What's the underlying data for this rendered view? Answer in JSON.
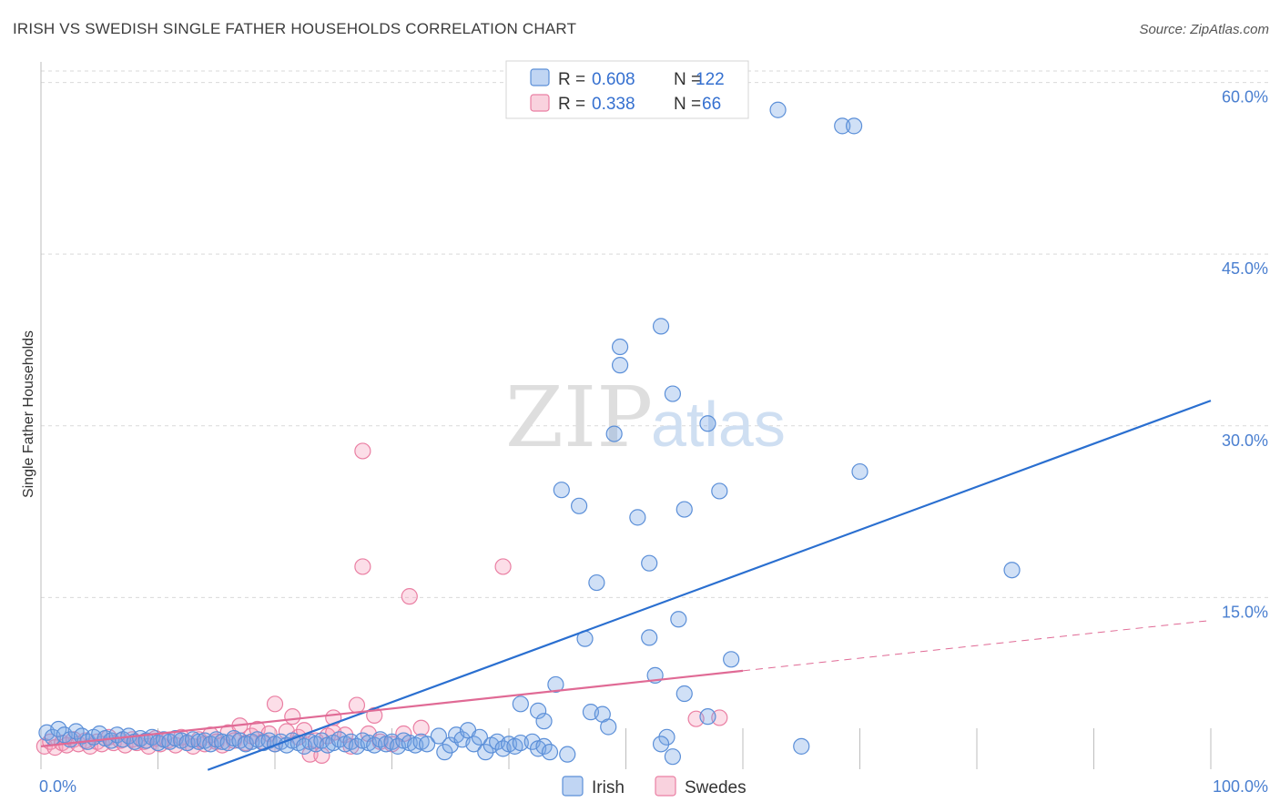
{
  "title": "IRISH VS SWEDISH SINGLE FATHER HOUSEHOLDS CORRELATION CHART",
  "source": "Source: ZipAtlas.com",
  "watermark": {
    "zip": "ZIP",
    "atlas": "atlas"
  },
  "colors": {
    "irish": "#5b8fd8",
    "irish_fill": "rgba(120,165,230,0.35)",
    "swedes": "#ea7fa3",
    "swedes_fill": "rgba(245,160,190,0.35)",
    "irish_line": "#2a6fd0",
    "swedes_line": "#e06a95",
    "grid": "#d9d9d9",
    "tick": "#4a7fd0"
  },
  "legend": {
    "rows": [
      {
        "r_label": "R =",
        "r_value": "0.608",
        "n_label": "N =",
        "n_value": "122"
      },
      {
        "r_label": "R =",
        "r_value": "0.338",
        "n_label": "N =",
        "n_value": "66"
      }
    ]
  },
  "chart_data": {
    "type": "scatter",
    "title": "IRISH VS SWEDISH SINGLE FATHER HOUSEHOLDS CORRELATION CHART",
    "xlabel": "",
    "ylabel": "Single Father Households",
    "xlim": [
      0,
      100
    ],
    "ylim": [
      0,
      61
    ],
    "x_tick_labels": [
      "0.0%",
      "100.0%"
    ],
    "y_ticks": [
      15,
      30,
      45,
      60
    ],
    "y_tick_labels": [
      "15.0%",
      "30.0%",
      "45.0%",
      "60.0%"
    ],
    "grid": true,
    "legend_position": "top-center",
    "series": [
      {
        "name": "Irish",
        "r": 0.608,
        "n": 122,
        "trend": {
          "x": [
            0,
            100
          ],
          "y": [
            -4.5,
            32.2
          ],
          "dashed_from": null
        },
        "points": [
          [
            0.5,
            3.2
          ],
          [
            1,
            2.8
          ],
          [
            1.5,
            3.5
          ],
          [
            2,
            3.0
          ],
          [
            2.5,
            2.6
          ],
          [
            3,
            3.3
          ],
          [
            3.5,
            2.9
          ],
          [
            4,
            2.4
          ],
          [
            4.5,
            2.8
          ],
          [
            5,
            3.1
          ],
          [
            5.5,
            2.7
          ],
          [
            6,
            2.5
          ],
          [
            6.5,
            3.0
          ],
          [
            7,
            2.6
          ],
          [
            7.5,
            2.9
          ],
          [
            8,
            2.4
          ],
          [
            8.5,
            2.7
          ],
          [
            9,
            2.5
          ],
          [
            9.5,
            2.8
          ],
          [
            10,
            2.3
          ],
          [
            10.5,
            2.6
          ],
          [
            11,
            2.4
          ],
          [
            11.5,
            2.7
          ],
          [
            12,
            2.5
          ],
          [
            12.5,
            2.3
          ],
          [
            13,
            2.6
          ],
          [
            13.5,
            2.4
          ],
          [
            14,
            2.5
          ],
          [
            14.5,
            2.2
          ],
          [
            15,
            2.6
          ],
          [
            15.5,
            2.4
          ],
          [
            16,
            2.3
          ],
          [
            16.5,
            2.7
          ],
          [
            17,
            2.5
          ],
          [
            17.5,
            2.2
          ],
          [
            18,
            2.4
          ],
          [
            18.5,
            2.6
          ],
          [
            19,
            2.3
          ],
          [
            19.5,
            2.5
          ],
          [
            20,
            2.2
          ],
          [
            20.5,
            2.4
          ],
          [
            21,
            2.1
          ],
          [
            21.5,
            2.5
          ],
          [
            22,
            2.3
          ],
          [
            22.5,
            2.0
          ],
          [
            23,
            2.4
          ],
          [
            23.5,
            2.2
          ],
          [
            24,
            2.5
          ],
          [
            24.5,
            2.1
          ],
          [
            25,
            2.3
          ],
          [
            25.5,
            2.6
          ],
          [
            26,
            2.2
          ],
          [
            26.5,
            2.4
          ],
          [
            27,
            2.0
          ],
          [
            27.5,
            2.5
          ],
          [
            28,
            2.3
          ],
          [
            28.5,
            2.1
          ],
          [
            29,
            2.6
          ],
          [
            29.5,
            2.2
          ],
          [
            30,
            2.4
          ],
          [
            30.5,
            2.0
          ],
          [
            31,
            2.5
          ],
          [
            31.5,
            2.3
          ],
          [
            32,
            2.1
          ],
          [
            32.5,
            2.4
          ],
          [
            33,
            2.2
          ],
          [
            34,
            2.9
          ],
          [
            34.5,
            1.5
          ],
          [
            35,
            2.1
          ],
          [
            35.5,
            3.0
          ],
          [
            36,
            2.6
          ],
          [
            36.5,
            3.4
          ],
          [
            37,
            2.2
          ],
          [
            37.5,
            2.8
          ],
          [
            38,
            1.5
          ],
          [
            38.5,
            2.1
          ],
          [
            39,
            2.4
          ],
          [
            39.5,
            1.8
          ],
          [
            40,
            2.2
          ],
          [
            40.5,
            2.0
          ],
          [
            41,
            2.3
          ],
          [
            42,
            2.4
          ],
          [
            42.5,
            1.8
          ],
          [
            43,
            2.0
          ],
          [
            43.5,
            1.5
          ],
          [
            41,
            5.7
          ],
          [
            42.5,
            5.1
          ],
          [
            43,
            4.2
          ],
          [
            44,
            7.4
          ],
          [
            44.5,
            24.4
          ],
          [
            45,
            1.3
          ],
          [
            46,
            23.0
          ],
          [
            46.5,
            11.4
          ],
          [
            47,
            5.0
          ],
          [
            47.5,
            16.3
          ],
          [
            48,
            4.8
          ],
          [
            48.5,
            3.7
          ],
          [
            49,
            29.3
          ],
          [
            49.5,
            36.9
          ],
          [
            49.5,
            35.3
          ],
          [
            51,
            22.0
          ],
          [
            52,
            18.0
          ],
          [
            52.5,
            8.2
          ],
          [
            53,
            38.7
          ],
          [
            52,
            11.5
          ],
          [
            54,
            32.8
          ],
          [
            54.5,
            13.1
          ],
          [
            55,
            22.7
          ],
          [
            54,
            1.1
          ],
          [
            53.5,
            2.8
          ],
          [
            55,
            6.6
          ],
          [
            57,
            30.2
          ],
          [
            57,
            4.6
          ],
          [
            58,
            24.3
          ],
          [
            59,
            9.6
          ],
          [
            63,
            57.6
          ],
          [
            65,
            2.0
          ],
          [
            68.5,
            56.2
          ],
          [
            69.5,
            56.2
          ],
          [
            70,
            26.0
          ],
          [
            83,
            17.4
          ],
          [
            53,
            2.2
          ]
        ]
      },
      {
        "name": "Swedes",
        "r": 0.338,
        "n": 66,
        "trend": {
          "x": [
            0,
            100
          ],
          "y": [
            2.0,
            13.0
          ],
          "dashed_from": 60
        },
        "points": [
          [
            0.3,
            2.0
          ],
          [
            0.8,
            2.4
          ],
          [
            1.2,
            1.9
          ],
          [
            1.8,
            2.3
          ],
          [
            2.2,
            2.1
          ],
          [
            2.8,
            2.6
          ],
          [
            3.2,
            2.2
          ],
          [
            3.8,
            2.5
          ],
          [
            4.2,
            2.0
          ],
          [
            4.8,
            2.4
          ],
          [
            5.2,
            2.2
          ],
          [
            5.8,
            2.8
          ],
          [
            6.2,
            2.3
          ],
          [
            6.8,
            2.5
          ],
          [
            7.2,
            2.1
          ],
          [
            7.8,
            2.6
          ],
          [
            8.2,
            2.3
          ],
          [
            8.8,
            2.4
          ],
          [
            9.2,
            2.0
          ],
          [
            9.8,
            2.7
          ],
          [
            10.2,
            2.2
          ],
          [
            10.8,
            2.5
          ],
          [
            11.5,
            2.1
          ],
          [
            12,
            2.8
          ],
          [
            12.5,
            2.3
          ],
          [
            13,
            2.0
          ],
          [
            13.5,
            2.6
          ],
          [
            14,
            2.2
          ],
          [
            14.5,
            3.0
          ],
          [
            15,
            2.4
          ],
          [
            15.5,
            2.1
          ],
          [
            16,
            3.2
          ],
          [
            16.5,
            2.5
          ],
          [
            17,
            3.8
          ],
          [
            17.5,
            2.3
          ],
          [
            18,
            2.9
          ],
          [
            18.5,
            3.5
          ],
          [
            19,
            2.4
          ],
          [
            19.5,
            3.1
          ],
          [
            20,
            2.2
          ],
          [
            20,
            5.7
          ],
          [
            21,
            3.3
          ],
          [
            21.5,
            4.6
          ],
          [
            22,
            2.8
          ],
          [
            22.5,
            3.4
          ],
          [
            23,
            1.3
          ],
          [
            23.5,
            2.5
          ],
          [
            24,
            1.2
          ],
          [
            24.5,
            2.9
          ],
          [
            25,
            3.2
          ],
          [
            25,
            4.5
          ],
          [
            26,
            3.0
          ],
          [
            26.5,
            2.0
          ],
          [
            27,
            5.6
          ],
          [
            27.5,
            27.8
          ],
          [
            27.5,
            17.7
          ],
          [
            28,
            3.1
          ],
          [
            28.5,
            4.7
          ],
          [
            29,
            2.4
          ],
          [
            30,
            2.2
          ],
          [
            31,
            3.1
          ],
          [
            31.5,
            15.1
          ],
          [
            32.5,
            3.6
          ],
          [
            39.5,
            17.7
          ],
          [
            56,
            4.4
          ],
          [
            58,
            4.5
          ]
        ]
      }
    ]
  },
  "bottom_legend": [
    {
      "label": "Irish"
    },
    {
      "label": "Swedes"
    }
  ]
}
